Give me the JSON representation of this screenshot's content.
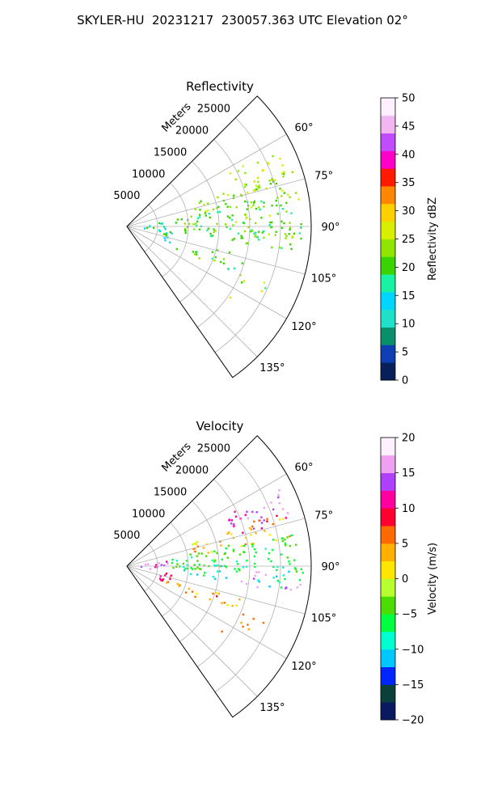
{
  "figure": {
    "title": "SKYLER-HU  20231217  230057.363 UTC Elevation 02°"
  },
  "colors": {
    "grid": "#b0b0b0",
    "frame": "#000000",
    "reflectivity_scale": [
      "#08205a",
      "#0d3fb3",
      "#0a8f6b",
      "#1fe0c8",
      "#00d6ff",
      "#19f2a2",
      "#3bd400",
      "#8fe600",
      "#d8f000",
      "#ffd000",
      "#ff8800",
      "#ff1a00",
      "#ff00c8",
      "#c04cff",
      "#f2b6f2",
      "#fff0ff"
    ],
    "velocity_scale": [
      "#0a1a60",
      "#0b3f3a",
      "#0026ff",
      "#00c8ff",
      "#00ffd0",
      "#00ff40",
      "#4bdc00",
      "#b8ff30",
      "#ffe600",
      "#ffb000",
      "#ff6a00",
      "#ff0030",
      "#ff00a0",
      "#b040ff",
      "#f0a0f0",
      "#fff0ff"
    ]
  },
  "chart_data": [
    {
      "type": "heatmap",
      "title": "Reflectivity",
      "projection": "polar-sector",
      "range_label": "Meters",
      "range_ticks": [
        5000,
        10000,
        15000,
        20000,
        25000
      ],
      "range_lim": [
        0,
        30000
      ],
      "azimuth_ticks": [
        "60°",
        "75°",
        "90°",
        "105°",
        "120°",
        "135°"
      ],
      "azimuth_tick_values": [
        60,
        75,
        90,
        105,
        120,
        135
      ],
      "azimuth_lim": [
        45,
        145
      ],
      "grid": true,
      "colorbar": {
        "label": "Reflectivity dBZ",
        "ticks": [
          0,
          5,
          10,
          15,
          20,
          25,
          30,
          35,
          40,
          45,
          50
        ],
        "tick_labels": [
          "0",
          "5",
          "10",
          "15",
          "20",
          "25",
          "30",
          "35",
          "40",
          "45",
          "50"
        ],
        "lim": [
          0,
          50
        ]
      }
    },
    {
      "type": "heatmap",
      "title": "Velocity",
      "projection": "polar-sector",
      "range_label": "Meters",
      "range_ticks": [
        5000,
        10000,
        15000,
        20000,
        25000
      ],
      "range_lim": [
        0,
        30000
      ],
      "azimuth_ticks": [
        "60°",
        "75°",
        "90°",
        "105°",
        "120°",
        "135°"
      ],
      "azimuth_tick_values": [
        60,
        75,
        90,
        105,
        120,
        135
      ],
      "azimuth_lim": [
        45,
        145
      ],
      "grid": true,
      "colorbar": {
        "label": "Velocity (m/s)",
        "ticks": [
          -20,
          -15,
          -10,
          -5,
          0,
          5,
          10,
          15,
          20
        ],
        "tick_labels": [
          "−20",
          "−15",
          "−10",
          "−5",
          "0",
          "5",
          "10",
          "15",
          "20"
        ],
        "lim": [
          -20,
          20
        ]
      }
    }
  ]
}
